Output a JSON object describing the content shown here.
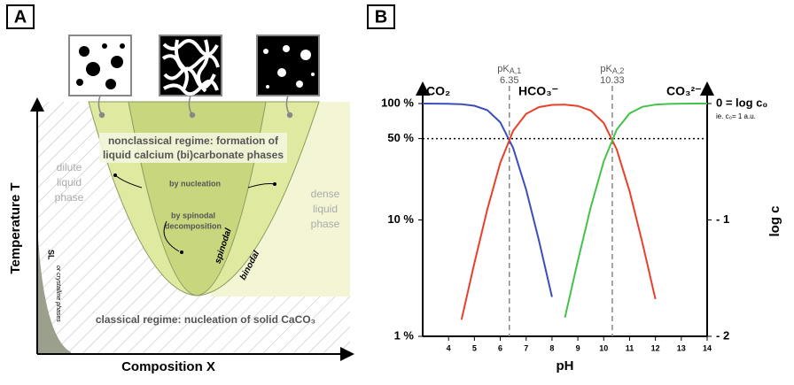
{
  "panels": {
    "a": "A",
    "b": "B"
  },
  "panel_a": {
    "y_axis_label": "Temperature T",
    "x_axis_label": "Composition X",
    "nonclassical_line1": "nonclassical regime: formation of",
    "nonclassical_line2": "liquid calcium (bi)carbonate phases",
    "by_nucleation": "by nucleation",
    "by_spinodal_1": "by spinodal",
    "by_spinodal_2": "decomposition",
    "dilute": [
      "dilute",
      "liquid",
      "phase"
    ],
    "dense": [
      "dense",
      "liquid",
      "phase"
    ],
    "spinodal": "spinodal",
    "binodal": "binodal",
    "sl": "SL",
    "sl_note": "or crystalline phases",
    "classical": "classical regime: nucleation of solid CaCO₃"
  },
  "chart_data": {
    "type": "line",
    "x_label": "pH",
    "y2_label": "log c",
    "y2_note": "ie. c₀= 1 a.u.",
    "yscale": "log",
    "x": [
      3,
      3.5,
      4,
      4.5,
      5,
      5.5,
      6,
      6.5,
      7,
      7.5,
      8,
      8.5,
      9,
      9.5,
      10,
      10.5,
      11,
      11.5,
      12,
      12.5,
      13,
      13.5,
      14
    ],
    "series": [
      {
        "name": "CO₂",
        "color": "#3a4fb8",
        "values": [
          99.96,
          99.86,
          99.55,
          98.61,
          95.72,
          87.62,
          69.12,
          41.45,
          18.28,
          6.6,
          2.18,
          null,
          null,
          null,
          null,
          null,
          null,
          null,
          null,
          null,
          null,
          null,
          null
        ]
      },
      {
        "name": "HCO₃⁻",
        "color": "#e8412b",
        "values": [
          null,
          null,
          null,
          1.39,
          4.28,
          12.38,
          30.88,
          58.54,
          81.68,
          93.26,
          97.37,
          97.86,
          95.33,
          87.06,
          68.12,
          40.34,
          17.61,
          6.33,
          2.09,
          null,
          null,
          null,
          null
        ]
      },
      {
        "name": "CO₃²⁻",
        "color": "#45c24a",
        "values": [
          null,
          null,
          null,
          null,
          null,
          null,
          null,
          null,
          null,
          null,
          null,
          1.45,
          4.46,
          12.88,
          31.86,
          59.66,
          82.39,
          93.67,
          97.91,
          99.33,
          99.79,
          99.93,
          99.98
        ]
      }
    ],
    "pk": [
      {
        "label_main": "pK",
        "label_sub": "A,1",
        "value": 6.35
      },
      {
        "label_main": "pK",
        "label_sub": "A,2",
        "value": 10.33
      }
    ],
    "hline": 50,
    "xlim": [
      3,
      14
    ],
    "xticks": [
      4,
      5,
      6,
      7,
      8,
      9,
      10,
      11,
      12,
      13,
      14
    ],
    "ylim": [
      1,
      100
    ],
    "yticks": [
      {
        "value": 1,
        "label": "1 %"
      },
      {
        "value": 10,
        "label": "10 %"
      },
      {
        "value": 50,
        "label": "50 %"
      },
      {
        "value": 100,
        "label": "100 %"
      }
    ],
    "y2lim": [
      -2,
      0
    ],
    "y2ticks": [
      {
        "value": -2,
        "label": "- 2"
      },
      {
        "value": -1,
        "label": "- 1"
      },
      {
        "value": 0,
        "label": "0 = log c₀"
      }
    ]
  }
}
